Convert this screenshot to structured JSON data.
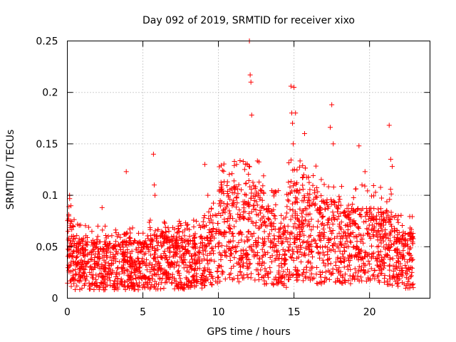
{
  "chart_data": {
    "type": "scatter",
    "title": "Day 092 of 2019, SRMTID for receiver xixo",
    "xlabel": "GPS time / hours",
    "ylabel": "SRMTID / TECUs",
    "xlim": [
      0,
      24
    ],
    "ylim": [
      0,
      0.25
    ],
    "xticks": [
      0,
      5,
      10,
      15,
      20
    ],
    "yticks": [
      0,
      0.05,
      0.1,
      0.15,
      0.2,
      0.25
    ],
    "grid": true,
    "marker": "+",
    "marker_color": "#ff0000",
    "series": [
      {
        "name": "SRMTID",
        "x": [
          0.05,
          0.1,
          0.15,
          0.2,
          0.25,
          0.3,
          0.6,
          1.0,
          1.5,
          2.0,
          2.3,
          2.5,
          3.0,
          3.3,
          3.6,
          3.9,
          4.2,
          4.8,
          5.3,
          5.7,
          5.75,
          5.8,
          6.2,
          6.8,
          7.4,
          8.1,
          8.7,
          9.1,
          9.3,
          9.6,
          10.0,
          10.4,
          10.8,
          11.2,
          11.6,
          11.9,
          12.05,
          12.1,
          12.15,
          12.2,
          12.5,
          12.9,
          13.3,
          13.7,
          14.2,
          14.6,
          14.8,
          14.85,
          14.9,
          14.95,
          15.0,
          15.1,
          15.4,
          15.7,
          16.0,
          16.5,
          17.0,
          17.4,
          17.5,
          17.6,
          18.0,
          18.5,
          19.0,
          19.3,
          19.5,
          19.7,
          20.0,
          20.5,
          21.0,
          21.3,
          21.4,
          21.5,
          21.9,
          22.2,
          22.6,
          22.8
        ],
        "y": [
          0.065,
          0.08,
          0.1,
          0.05,
          0.035,
          0.04,
          0.045,
          0.035,
          0.03,
          0.04,
          0.088,
          0.07,
          0.025,
          0.06,
          0.03,
          0.123,
          0.04,
          0.03,
          0.05,
          0.14,
          0.11,
          0.1,
          0.04,
          0.03,
          0.06,
          0.035,
          0.04,
          0.13,
          0.1,
          0.06,
          0.05,
          0.06,
          0.08,
          0.13,
          0.04,
          0.13,
          0.25,
          0.217,
          0.21,
          0.178,
          0.05,
          0.04,
          0.06,
          0.05,
          0.03,
          0.07,
          0.206,
          0.18,
          0.17,
          0.15,
          0.205,
          0.18,
          0.06,
          0.16,
          0.09,
          0.05,
          0.06,
          0.166,
          0.188,
          0.15,
          0.07,
          0.05,
          0.04,
          0.148,
          0.11,
          0.123,
          0.06,
          0.05,
          0.04,
          0.168,
          0.135,
          0.128,
          0.08,
          0.04,
          0.03,
          0.025
        ]
      }
    ]
  }
}
